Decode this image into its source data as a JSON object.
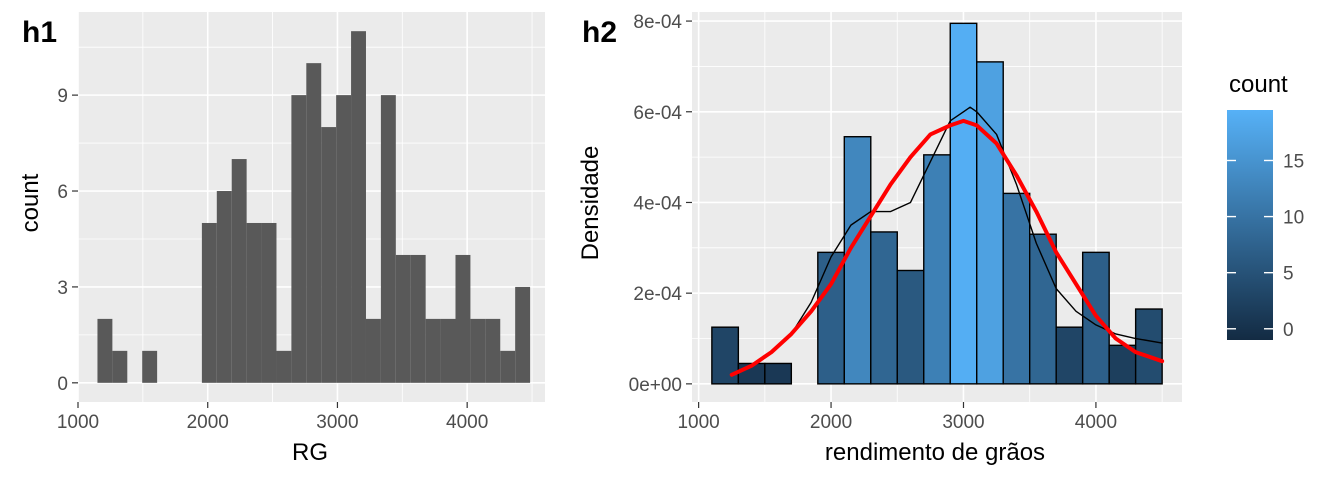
{
  "chart_data": [
    {
      "panel": "h1",
      "type": "bar",
      "xlabel": "RG",
      "ylabel": "count",
      "xlim": [
        1000,
        4600
      ],
      "ylim": [
        -0.6,
        11.6
      ],
      "x_ticks": [
        1000,
        2000,
        3000,
        4000
      ],
      "x_tick_labels": [
        "1000",
        "2000",
        "3000",
        "4000"
      ],
      "y_ticks": [
        0,
        3,
        6,
        9
      ],
      "y_tick_labels": [
        "0",
        "3",
        "6",
        "9"
      ],
      "bin_start": 1150,
      "bin_width": 115,
      "counts": [
        2,
        1,
        0,
        1,
        0,
        0,
        0,
        5,
        6,
        7,
        5,
        5,
        1,
        9,
        10,
        8,
        9,
        11,
        2,
        9,
        4,
        4,
        2,
        2,
        4,
        2,
        2,
        1,
        3
      ],
      "bar_color": "#595959",
      "grid": true
    },
    {
      "panel": "h2",
      "type": "bar",
      "xlabel": "rendimento de grãos",
      "ylabel": "Densidade",
      "xlim": [
        950,
        4650
      ],
      "ylim": [
        -4e-05,
        0.00082
      ],
      "x_ticks": [
        1000,
        2000,
        3000,
        4000
      ],
      "x_tick_labels": [
        "1000",
        "2000",
        "3000",
        "4000"
      ],
      "y_ticks": [
        0,
        0.0002,
        0.0004,
        0.0006,
        0.0008
      ],
      "y_tick_labels": [
        "0e+00",
        "2e-04",
        "4e-04",
        "6e-04",
        "8e-04"
      ],
      "bin_start": 1100,
      "bin_width": 200,
      "density": [
        0.000125,
        4.5e-05,
        4.5e-05,
        0,
        0.00029,
        0.000545,
        0.000335,
        0.00025,
        0.000505,
        0.000795,
        0.00071,
        0.00042,
        0.00033,
        0.000125,
        0.00029,
        8.5e-05,
        0.000165
      ],
      "counts": [
        3,
        1,
        1,
        0,
        7,
        13,
        8,
        6,
        12,
        19,
        17,
        10,
        8,
        3,
        7,
        2,
        4
      ],
      "kde_line": {
        "x": [
          1250,
          1400,
          1550,
          1700,
          1850,
          2000,
          2150,
          2300,
          2450,
          2600,
          2750,
          2900,
          3000,
          3050,
          3100,
          3250,
          3400,
          3550,
          3700,
          3850,
          4000,
          4150,
          4300,
          4500
        ],
        "y": [
          2e-05,
          4e-05,
          7e-05,
          0.00011,
          0.00018,
          0.00028,
          0.00035,
          0.00038,
          0.00038,
          0.0004,
          0.00049,
          0.00058,
          0.0006,
          0.00061,
          0.0006,
          0.00055,
          0.00044,
          0.00031,
          0.00021,
          0.00016,
          0.00013,
          0.00011,
          0.0001,
          9e-05
        ],
        "color": "#000000"
      },
      "normal_curve": {
        "x": [
          1250,
          1400,
          1550,
          1700,
          1850,
          2000,
          2150,
          2300,
          2450,
          2600,
          2750,
          2900,
          3000,
          3100,
          3250,
          3400,
          3550,
          3700,
          3850,
          4000,
          4150,
          4300,
          4500
        ],
        "y": [
          2e-05,
          4e-05,
          7e-05,
          0.00011,
          0.00016,
          0.00022,
          0.0003,
          0.00037,
          0.00044,
          0.0005,
          0.00055,
          0.00057,
          0.00058,
          0.00057,
          0.00053,
          0.00046,
          0.00038,
          0.00029,
          0.00022,
          0.00015,
          0.0001,
          7e-05,
          5e-05
        ],
        "color": "#ff0000"
      },
      "legend": {
        "title": "count",
        "position": "right",
        "range": [
          -1,
          19.5
        ],
        "ticks": [
          0,
          5,
          10,
          15
        ],
        "tick_labels": [
          "0",
          "5",
          "10",
          "15"
        ],
        "low_color": "#132B43",
        "high_color": "#56B1F7"
      },
      "grid": true
    }
  ],
  "panel_tags": [
    "h1",
    "h2"
  ],
  "colors": {
    "panel_bg": "#ebebeb",
    "grid_major": "#ffffff",
    "tick_label": "#4d4d4d",
    "bar_outline": "#000000"
  }
}
